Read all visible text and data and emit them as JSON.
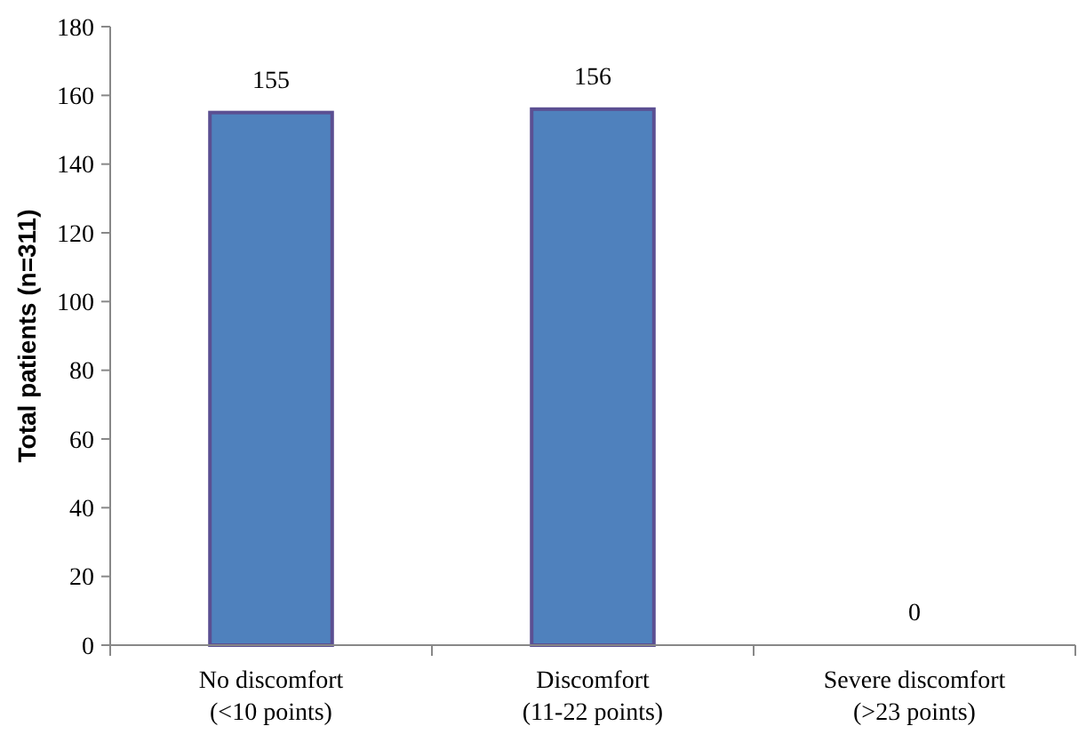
{
  "chart_data": {
    "type": "bar",
    "ylabel": "Total patients (n=311)",
    "categories": [
      "No discomfort\n(<10 points)",
      "Discomfort\n(11-22 points)",
      "Severe discomfort\n(>23 points)"
    ],
    "values": [
      155,
      156,
      0
    ],
    "color": "#4f81bd",
    "ylim": [
      0,
      180
    ],
    "yticks": [
      0,
      20,
      40,
      60,
      80,
      100,
      120,
      140,
      160,
      180
    ],
    "data_labels": true,
    "grid": false
  }
}
